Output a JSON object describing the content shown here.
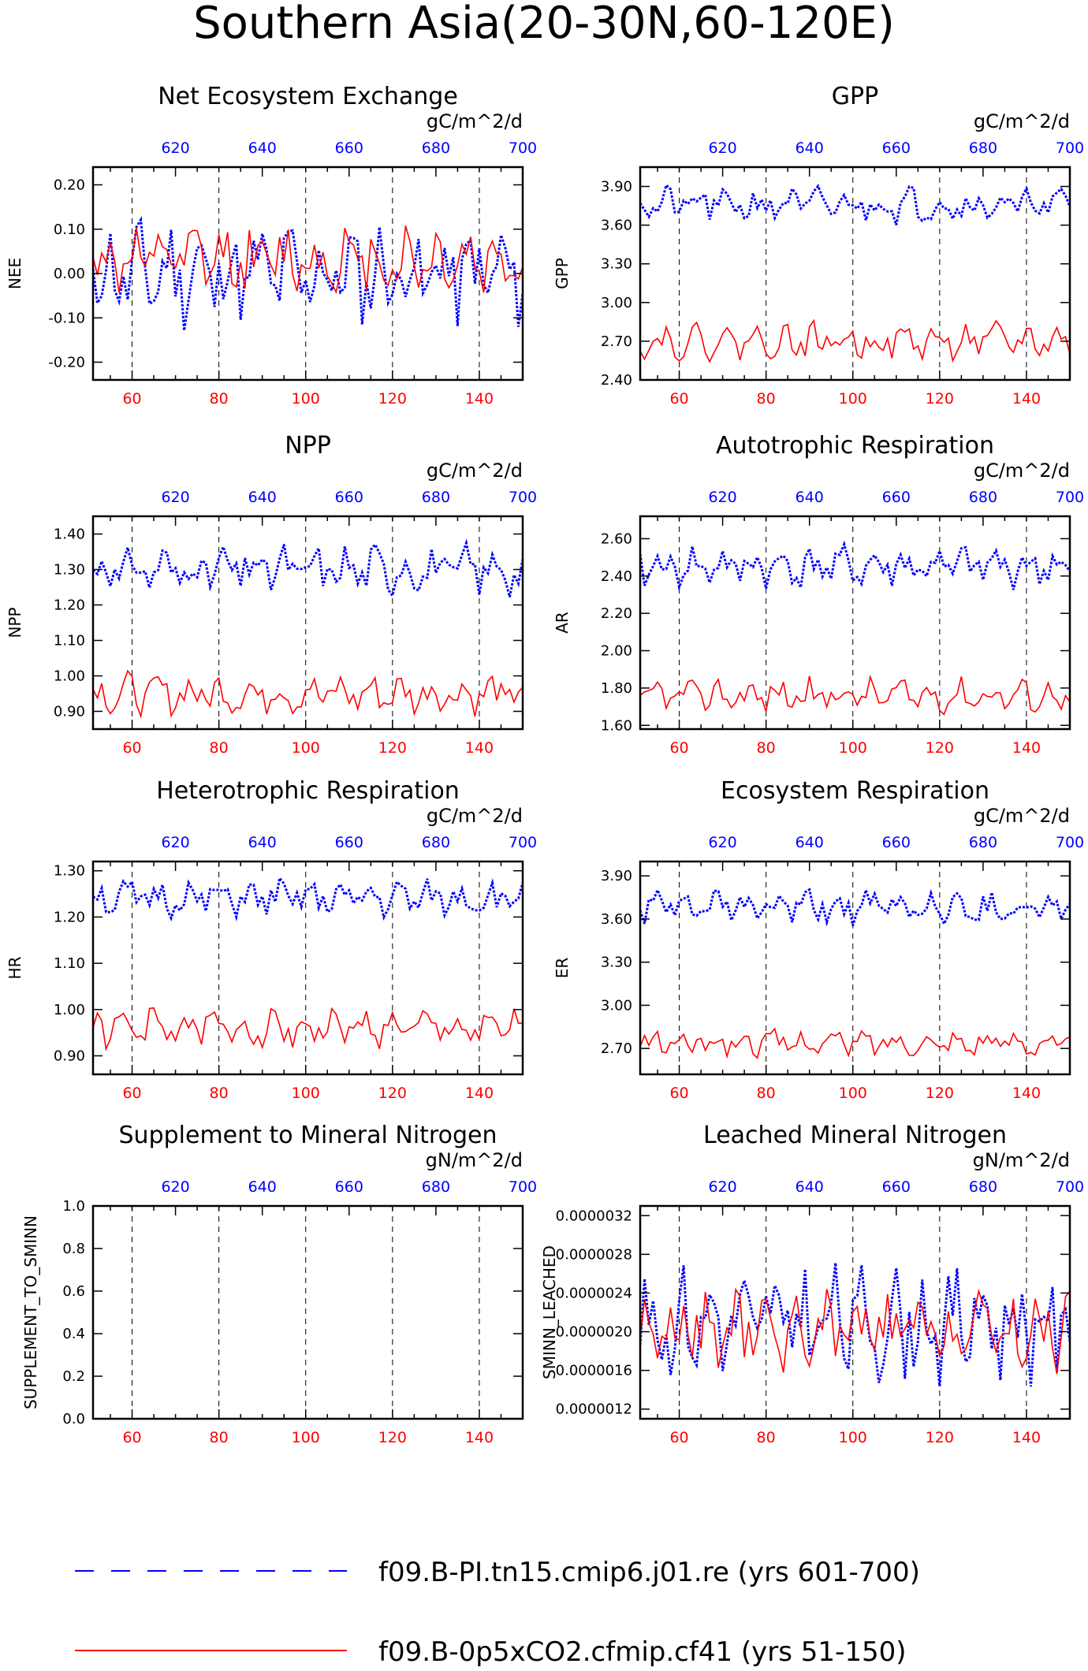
{
  "figure_title": "Southern Asia(20-30N,60-120E)",
  "colors": {
    "series_a": "#0000ff",
    "series_b": "#ff0000",
    "axis": "#000000"
  },
  "legend": [
    {
      "label": "f09.B-PI.tn15.cmip6.j01.re (yrs 601-700)",
      "color": "#0000ff",
      "style": "dashed"
    },
    {
      "label": "f09.B-0p5xCO2.cfmip.cf41 (yrs 51-150)",
      "color": "#ff0000",
      "style": "solid"
    }
  ],
  "chart_data": [
    {
      "type": "line",
      "title": "Net Ecosystem Exchange",
      "ylabel": "NEE",
      "units": "gC/m^2/d",
      "ylim": [
        -0.24,
        0.24
      ],
      "yticks": [
        -0.2,
        -0.1,
        0.0,
        0.1,
        0.2
      ],
      "ytick_labels": [
        "-0.20",
        "-0.10",
        "0.00",
        "0.10",
        "0.20"
      ],
      "x_bottom_ticks": [
        60,
        80,
        100,
        120,
        140
      ],
      "x_top_ticks": [
        620,
        640,
        660,
        680,
        700
      ],
      "x_bottom_range": [
        51,
        150
      ],
      "x_top_range": [
        601,
        700
      ],
      "series": [
        {
          "name": "f09.B-PI.tn15.cmip6.j01.re (yrs 601-700)",
          "mean": 0.0,
          "amp": 0.1,
          "seed": 11
        },
        {
          "name": "f09.B-0p5xCO2.cfmip.cf41 (yrs 51-150)",
          "mean": 0.03,
          "amp": 0.07,
          "seed": 12
        }
      ]
    },
    {
      "type": "line",
      "title": "GPP",
      "ylabel": "GPP",
      "units": "gC/m^2/d",
      "ylim": [
        2.4,
        4.05
      ],
      "yticks": [
        2.4,
        2.7,
        3.0,
        3.3,
        3.6,
        3.9
      ],
      "ytick_labels": [
        "2.40",
        "2.70",
        "3.00",
        "3.30",
        "3.60",
        "3.90"
      ],
      "x_bottom_ticks": [
        60,
        80,
        100,
        120,
        140
      ],
      "x_top_ticks": [
        620,
        640,
        660,
        680,
        700
      ],
      "x_bottom_range": [
        51,
        150
      ],
      "x_top_range": [
        601,
        700
      ],
      "series": [
        {
          "name": "f09.B-PI.tn15.cmip6.j01.re (yrs 601-700)",
          "mean": 3.76,
          "amp": 0.12,
          "seed": 21
        },
        {
          "name": "f09.B-0p5xCO2.cfmip.cf41 (yrs 51-150)",
          "mean": 2.7,
          "amp": 0.12,
          "seed": 22
        }
      ]
    },
    {
      "type": "line",
      "title": "NPP",
      "ylabel": "NPP",
      "units": "gC/m^2/d",
      "ylim": [
        0.85,
        1.45
      ],
      "yticks": [
        0.9,
        1.0,
        1.1,
        1.2,
        1.3,
        1.4
      ],
      "ytick_labels": [
        "0.90",
        "1.00",
        "1.10",
        "1.20",
        "1.30",
        "1.40"
      ],
      "x_bottom_ticks": [
        60,
        80,
        100,
        120,
        140
      ],
      "x_top_ticks": [
        620,
        640,
        660,
        680,
        700
      ],
      "x_bottom_range": [
        51,
        150
      ],
      "x_top_range": [
        601,
        700
      ],
      "series": [
        {
          "name": "f09.B-PI.tn15.cmip6.j01.re (yrs 601-700)",
          "mean": 1.3,
          "amp": 0.06,
          "seed": 31
        },
        {
          "name": "f09.B-0p5xCO2.cfmip.cf41 (yrs 51-150)",
          "mean": 0.95,
          "amp": 0.05,
          "seed": 32
        }
      ]
    },
    {
      "type": "line",
      "title": "Autotrophic Respiration",
      "ylabel": "AR",
      "units": "gC/m^2/d",
      "ylim": [
        1.58,
        2.72
      ],
      "yticks": [
        1.6,
        1.8,
        2.0,
        2.2,
        2.4,
        2.6
      ],
      "ytick_labels": [
        "1.60",
        "1.80",
        "2.00",
        "2.20",
        "2.40",
        "2.60"
      ],
      "x_bottom_ticks": [
        60,
        80,
        100,
        120,
        140
      ],
      "x_top_ticks": [
        620,
        640,
        660,
        680,
        700
      ],
      "x_bottom_range": [
        51,
        150
      ],
      "x_top_range": [
        601,
        700
      ],
      "series": [
        {
          "name": "f09.B-PI.tn15.cmip6.j01.re (yrs 601-700)",
          "mean": 2.45,
          "amp": 0.1,
          "seed": 41
        },
        {
          "name": "f09.B-0p5xCO2.cfmip.cf41 (yrs 51-150)",
          "mean": 1.76,
          "amp": 0.08,
          "seed": 42
        }
      ]
    },
    {
      "type": "line",
      "title": "Heterotrophic Respiration",
      "ylabel": "HR",
      "units": "gC/m^2/d",
      "ylim": [
        0.86,
        1.32
      ],
      "yticks": [
        0.9,
        1.0,
        1.1,
        1.2,
        1.3
      ],
      "ytick_labels": [
        "0.90",
        "1.00",
        "1.10",
        "1.20",
        "1.30"
      ],
      "x_bottom_ticks": [
        60,
        80,
        100,
        120,
        140
      ],
      "x_top_ticks": [
        620,
        640,
        660,
        680,
        700
      ],
      "x_bottom_range": [
        51,
        150
      ],
      "x_top_range": [
        601,
        700
      ],
      "series": [
        {
          "name": "f09.B-PI.tn15.cmip6.j01.re (yrs 601-700)",
          "mean": 1.24,
          "amp": 0.035,
          "seed": 51
        },
        {
          "name": "f09.B-0p5xCO2.cfmip.cf41 (yrs 51-150)",
          "mean": 0.96,
          "amp": 0.035,
          "seed": 52
        }
      ]
    },
    {
      "type": "line",
      "title": "Ecosystem Respiration",
      "ylabel": "ER",
      "units": "gC/m^2/d",
      "ylim": [
        2.52,
        4.0
      ],
      "yticks": [
        2.7,
        3.0,
        3.3,
        3.6,
        3.9
      ],
      "ytick_labels": [
        "2.70",
        "3.00",
        "3.30",
        "3.60",
        "3.90"
      ],
      "x_bottom_ticks": [
        60,
        80,
        100,
        120,
        140
      ],
      "x_top_ticks": [
        620,
        640,
        660,
        680,
        700
      ],
      "x_bottom_range": [
        51,
        150
      ],
      "x_top_range": [
        601,
        700
      ],
      "series": [
        {
          "name": "f09.B-PI.tn15.cmip6.j01.re (yrs 601-700)",
          "mean": 3.68,
          "amp": 0.1,
          "seed": 61
        },
        {
          "name": "f09.B-0p5xCO2.cfmip.cf41 (yrs 51-150)",
          "mean": 2.74,
          "amp": 0.08,
          "seed": 62
        }
      ]
    },
    {
      "type": "line",
      "title": "Supplement to Mineral Nitrogen",
      "ylabel": "SUPPLEMENT_TO_SMINN",
      "units": "gN/m^2/d",
      "ylim": [
        0.0,
        1.0
      ],
      "yticks": [
        0.0,
        0.2,
        0.4,
        0.6,
        0.8,
        1.0
      ],
      "ytick_labels": [
        "0.0",
        "0.2",
        "0.4",
        "0.6",
        "0.8",
        "1.0"
      ],
      "x_bottom_ticks": [
        60,
        80,
        100,
        120,
        140
      ],
      "x_top_ticks": [
        620,
        640,
        660,
        680,
        700
      ],
      "x_bottom_range": [
        51,
        150
      ],
      "x_top_range": [
        601,
        700
      ],
      "series": []
    },
    {
      "type": "line",
      "title": "Leached Mineral Nitrogen",
      "ylabel": "SMINN_LEACHED",
      "units": "gN/m^2/d",
      "ylim": [
        1.1e-06,
        3.3e-06
      ],
      "yticks": [
        1.2e-06,
        1.6e-06,
        2e-06,
        2.4e-06,
        2.8e-06,
        3.2e-06
      ],
      "ytick_labels": [
        "0.0000012",
        "0.0000016",
        "0.0000020",
        "0.0000024",
        "0.0000028",
        "0.0000032"
      ],
      "x_bottom_ticks": [
        60,
        80,
        100,
        120,
        140
      ],
      "x_top_ticks": [
        620,
        640,
        660,
        680,
        700
      ],
      "x_bottom_range": [
        51,
        150
      ],
      "x_top_range": [
        601,
        700
      ],
      "series": [
        {
          "name": "f09.B-PI.tn15.cmip6.j01.re (yrs 601-700)",
          "mean": 2.1e-06,
          "amp": 5e-07,
          "seed": 81
        },
        {
          "name": "f09.B-0p5xCO2.cfmip.cf41 (yrs 51-150)",
          "mean": 2e-06,
          "amp": 3.5e-07,
          "seed": 82
        }
      ]
    }
  ]
}
